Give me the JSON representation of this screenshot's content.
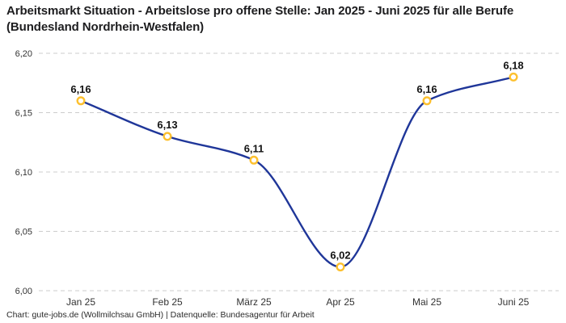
{
  "header": {
    "title": "Arbeitsmarkt Situation - Arbeitslose pro offene Stelle: Jan 2025 - Juni 2025 für alle Berufe (Bundesland Nordrhein-Westfalen)"
  },
  "footer": {
    "text": "Chart: gute-jobs.de (Wollmilchsau GmbH) | Datenquelle: Bundesagentur für Arbeit"
  },
  "chart_data": {
    "type": "line",
    "title": "Arbeitsmarkt Situation - Arbeitslose pro offene Stelle: Jan 2025 - Juni 2025 für alle Berufe (Bundesland Nordrhein-Westfalen)",
    "categories": [
      "Jan 25",
      "Feb 25",
      "März 25",
      "Apr 25",
      "Mai 25",
      "Juni 25"
    ],
    "values": [
      6.16,
      6.13,
      6.11,
      6.02,
      6.16,
      6.18
    ],
    "point_labels": [
      "6,16",
      "6,13",
      "6,11",
      "6,02",
      "6,16",
      "6,18"
    ],
    "y_tick_labels": [
      "6,20",
      "6,15",
      "6,10",
      "6,05",
      "6,00"
    ],
    "y_tick_values": [
      6.2,
      6.15,
      6.1,
      6.05,
      6.0
    ],
    "ylim": [
      6.0,
      6.2
    ],
    "xlabel": "",
    "ylabel": "",
    "grid": "horizontal-dashed",
    "legend": "none",
    "curve": "smooth-monotone",
    "line_color": "#1f3699",
    "marker_color": "#fdc02e",
    "marker_fill": "#ffffff",
    "grid_color": "#cccccc",
    "tick_color": "#333333",
    "point_label_color": "#131313"
  }
}
